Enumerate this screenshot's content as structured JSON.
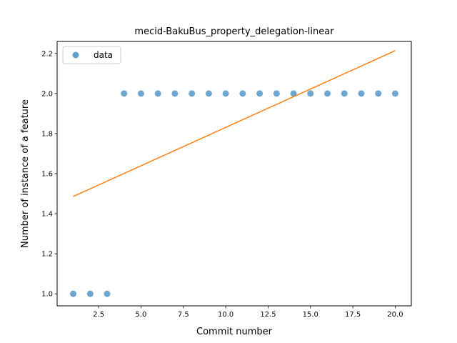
{
  "chart_data": {
    "type": "scatter",
    "title": "mecid-BakuBus_property_delegation-linear",
    "xlabel": "Commit number",
    "ylabel": "Number of instance of a feature",
    "xlim": [
      0.05,
      20.95
    ],
    "ylim": [
      0.94,
      2.26
    ],
    "xticks": [
      2.5,
      5.0,
      7.5,
      10.0,
      12.5,
      15.0,
      17.5,
      20.0
    ],
    "xtick_labels": [
      "2.5",
      "5.0",
      "7.5",
      "10.0",
      "12.5",
      "15.0",
      "17.5",
      "20.0"
    ],
    "yticks": [
      1.0,
      1.2,
      1.4,
      1.6,
      1.8,
      2.0,
      2.2
    ],
    "ytick_labels": [
      "1.0",
      "1.2",
      "1.4",
      "1.6",
      "1.8",
      "2.0",
      "2.2"
    ],
    "grid": false,
    "legend_position": "top-left",
    "series": [
      {
        "name": "data",
        "kind": "scatter",
        "color": "#1f77b4",
        "x": [
          1,
          2,
          3,
          4,
          5,
          6,
          7,
          8,
          9,
          10,
          11,
          12,
          13,
          14,
          15,
          16,
          17,
          18,
          19,
          20
        ],
        "y": [
          1,
          1,
          1,
          2,
          2,
          2,
          2,
          2,
          2,
          2,
          2,
          2,
          2,
          2,
          2,
          2,
          2,
          2,
          2,
          2
        ]
      },
      {
        "kind": "line",
        "color": "#ff7f0e",
        "x": [
          1,
          20
        ],
        "y": [
          1.486,
          2.214
        ]
      }
    ]
  }
}
